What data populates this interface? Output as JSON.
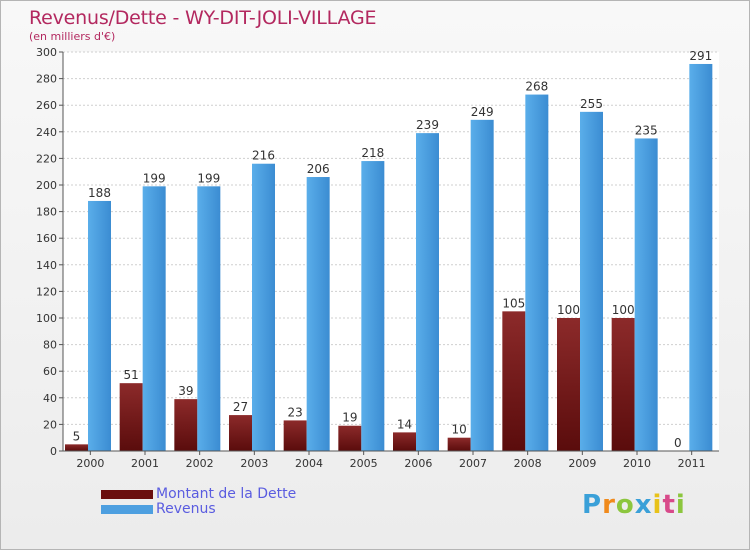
{
  "chart_data": {
    "type": "bar",
    "title": "Revenus/Dette - WY-DIT-JOLI-VILLAGE",
    "subtitle": "(en milliers d'€)",
    "categories": [
      "2000",
      "2001",
      "2002",
      "2003",
      "2004",
      "2005",
      "2006",
      "2007",
      "2008",
      "2009",
      "2010",
      "2011"
    ],
    "series": [
      {
        "name": "Montant de la Dette",
        "color": "#7a1515",
        "values": [
          5,
          51,
          39,
          27,
          23,
          19,
          14,
          10,
          105,
          100,
          100,
          0
        ]
      },
      {
        "name": "Revenus",
        "color": "#4d9fe0",
        "values": [
          188,
          199,
          199,
          216,
          206,
          218,
          239,
          249,
          268,
          255,
          235,
          291
        ]
      }
    ],
    "ylim": [
      0,
      300
    ],
    "yticks": [
      0,
      20,
      40,
      60,
      80,
      100,
      120,
      140,
      160,
      180,
      200,
      220,
      240,
      260,
      280,
      300
    ],
    "grid": true,
    "legend_position": "bottom-left"
  },
  "legend": {
    "debt_label": "Montant de la Dette",
    "revenue_label": "Revenus",
    "debt_color": "#6a0f0f",
    "revenue_color": "#4d9fe0"
  },
  "logo": {
    "letters": [
      "P",
      "r",
      "o",
      "x",
      "i",
      "t",
      "i"
    ],
    "colors": [
      "#3aa0d8",
      "#f08a1c",
      "#8cc63e",
      "#3aa0d8",
      "#e8c21a",
      "#d84a8a",
      "#8cc63e"
    ]
  }
}
